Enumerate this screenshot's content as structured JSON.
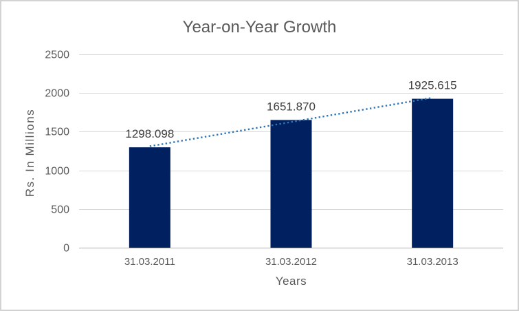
{
  "chart": {
    "background": "#ffffff",
    "border_color": "#d2d2d2"
  },
  "colors": {
    "bar": "#002060",
    "trendline": "#2e75b6",
    "gridline": "#d9d9d9",
    "axis_line": "#bfbfbf",
    "axis_text": "#595959",
    "title_text": "#595959",
    "data_label_text": "#404040"
  },
  "chart_data": {
    "type": "bar",
    "title": "Year-on-Year Growth",
    "xlabel": "Years",
    "ylabel": "Rs. In Millions",
    "categories": [
      "31.03.2011",
      "31.03.2012",
      "31.03.2013"
    ],
    "values": [
      1298.098,
      1651.87,
      1925.615
    ],
    "data_labels": [
      "1298.098",
      "1651.870",
      "1925.615"
    ],
    "ylim": [
      0,
      2500
    ],
    "ytick_interval": 500,
    "yticks": [
      0,
      500,
      1000,
      1500,
      2000,
      2500
    ],
    "grid": true,
    "legend": "none",
    "trendline": {
      "type": "linear",
      "style": "dotted"
    }
  }
}
